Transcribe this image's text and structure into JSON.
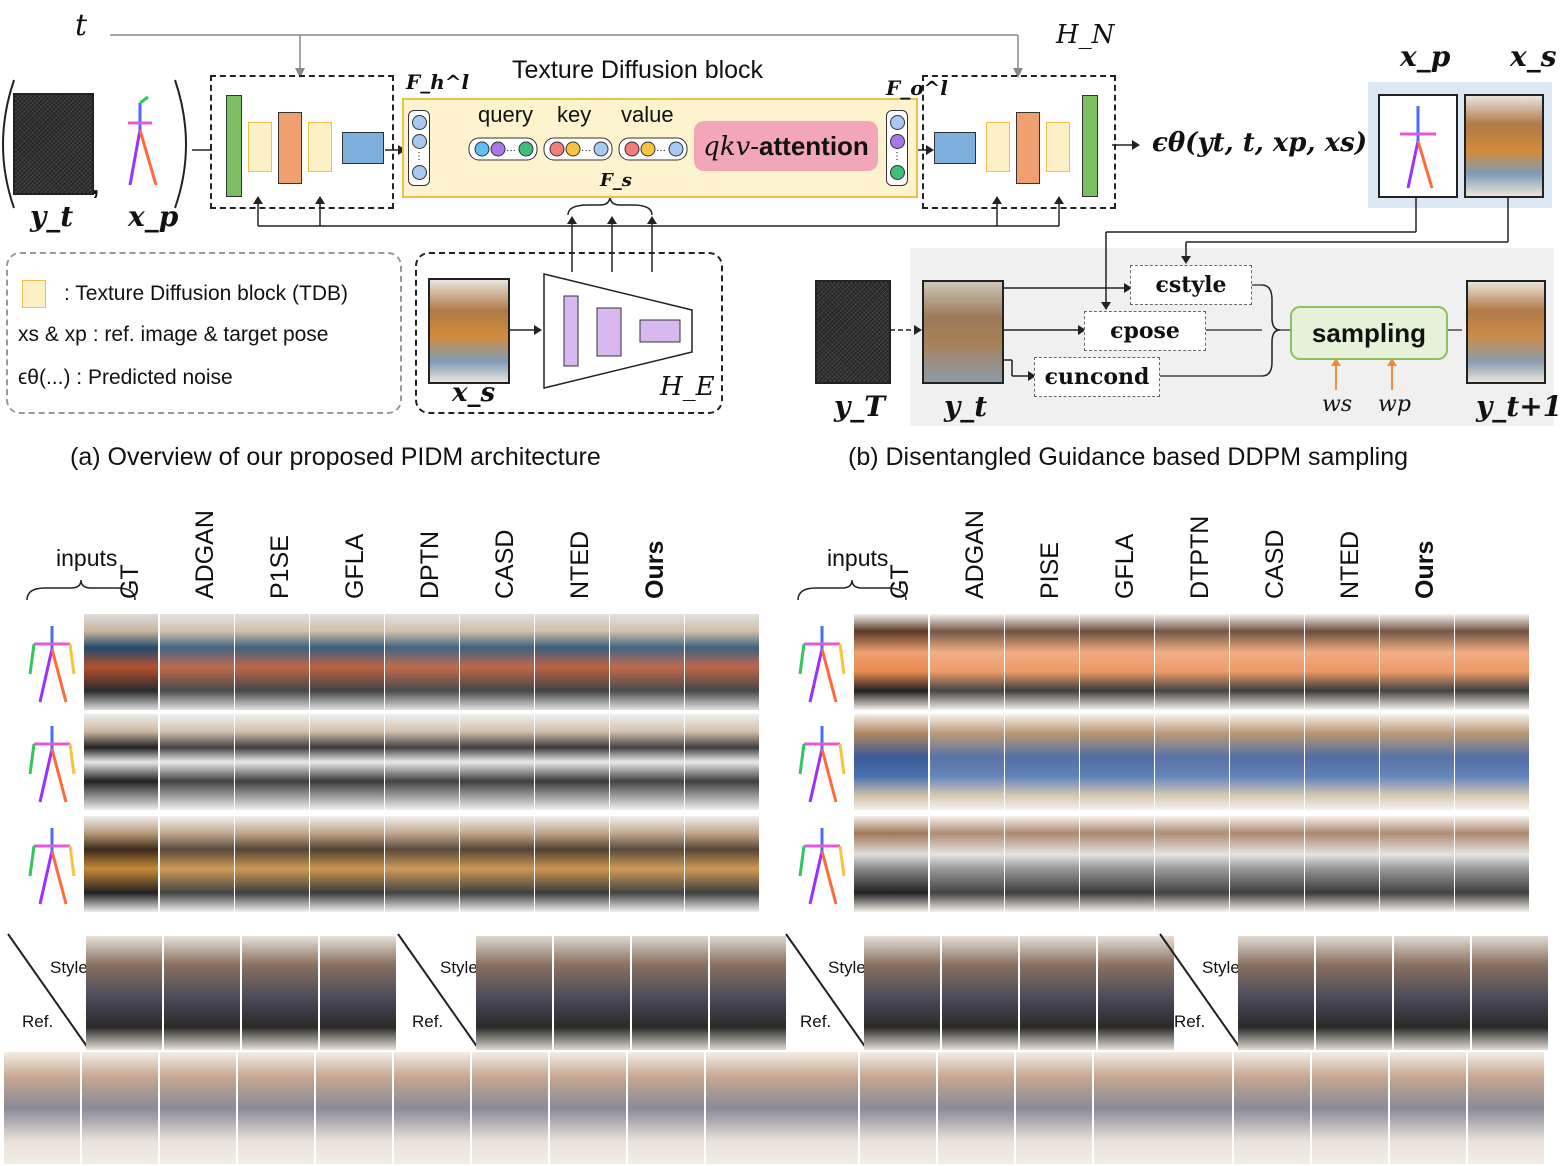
{
  "top_left": {
    "t_label": "t",
    "yt_label": "y_t",
    "xp_label": "x_p",
    "fh_label": "F_h^l",
    "fo_label": "F_o^l",
    "hn_label": "H_N",
    "he_label": "H_E",
    "fs_label": "F_s",
    "tdb_title": "Texture Diffusion block",
    "query": "query",
    "key": "key",
    "value": "value",
    "attn_prefix": "qkv-",
    "attn_bold": "attention",
    "output": "ϵθ(yt, t, xp, xs)",
    "xs_label": "x_s",
    "legend": {
      "tdb": ": Texture Diffusion block (TDB)",
      "ref": "xs & xp : ref. image & target pose",
      "noise": "ϵθ(...) : Predicted noise"
    },
    "caption": "(a) Overview of our proposed PIDM architecture"
  },
  "top_right": {
    "xp_label": "x_p",
    "xs_label": "x_s",
    "yT_label": "y_T",
    "yt_label": "y_t",
    "yt1_label": "y_t+1",
    "eps_style": "ϵstyle",
    "eps_pose": "ϵpose",
    "eps_uncond": "ϵuncond",
    "sampling": "sampling",
    "ws": "ws",
    "wp": "wp",
    "caption": "(b) Disentangled Guidance based DDPM sampling"
  },
  "grid_left": {
    "inputs": "inputs",
    "columns": [
      "GT",
      "ADGAN",
      "P1SE",
      "GFLA",
      "DPTN",
      "CASD",
      "NTED",
      "Ours"
    ]
  },
  "grid_right": {
    "inputs": "inputs",
    "columns": [
      "GT",
      "ADGAN",
      "PISE",
      "GFLA",
      "DTPTN",
      "CASD",
      "NTED",
      "Ours"
    ]
  },
  "bottom": {
    "style": "Style",
    "ref": "Ref."
  },
  "colors": {
    "tdb_fill": "#fdf3cf",
    "tdb_border": "#e8c24a",
    "green": "#7cbf62",
    "orange": "#f0a070",
    "yellow_bar": "#fdf0c6",
    "blue": "#7eaedc",
    "pink": "#f2a6b8",
    "lilac": "#d9b8f0",
    "sampling_fill": "#e6f2d8",
    "sampling_border": "#8cc063",
    "panel_gray": "#f0f0f0",
    "xpanel_blue": "#dce8f4"
  }
}
